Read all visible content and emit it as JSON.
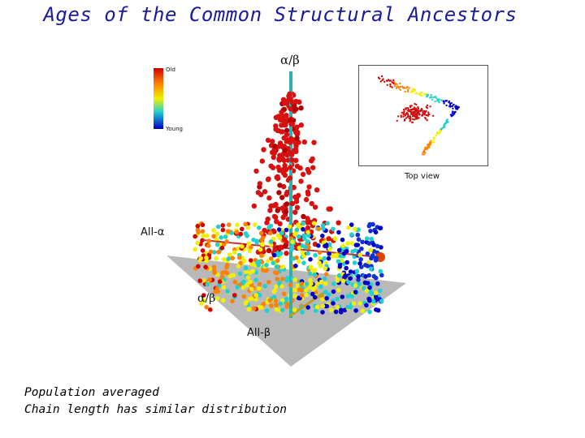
{
  "slide": {
    "title": "Ages of the Common Structural Ancestors",
    "caption_lines": [
      "Population averaged",
      "Chain length has similar distribution"
    ]
  },
  "figure": {
    "colorbar": {
      "top_label": "Old",
      "bottom_label": "Young",
      "colors": [
        "#d40000",
        "#ff8000",
        "#f0f000",
        "#20d0d0",
        "#0000c8"
      ]
    },
    "axis_labels": {
      "vertical": "α/β",
      "all_alpha": "All-α",
      "plane_alpha_beta": "α/β",
      "all_beta": "All-β"
    },
    "inset": {
      "label": "Top view"
    }
  }
}
